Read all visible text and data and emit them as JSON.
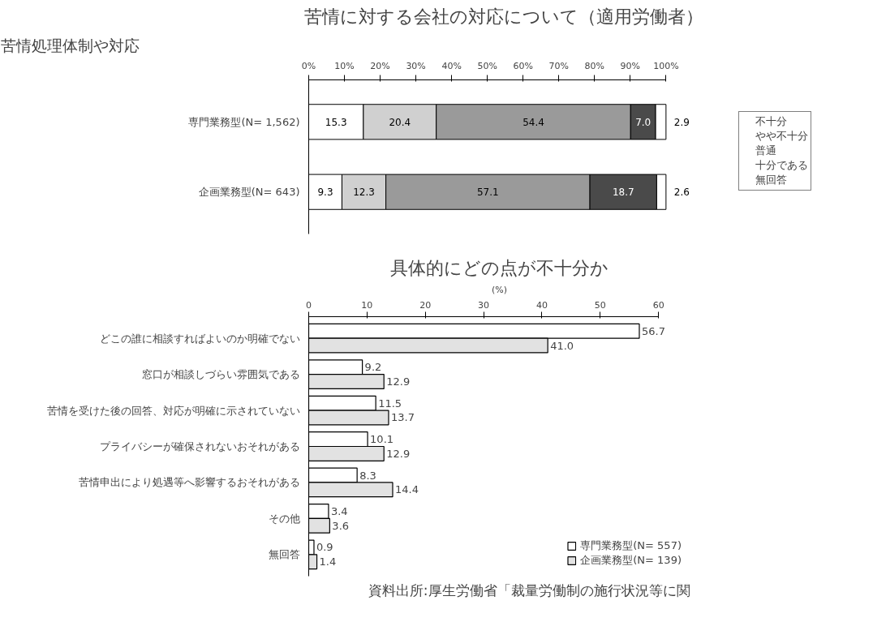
{
  "chart_data": [
    {
      "type": "bar",
      "orientation": "horizontal",
      "stacked": true,
      "title": "苦情に対する会社の対応について（適用労働者）",
      "subtitle": "苦情処理体制や対応",
      "categories": [
        "専門業務型(N= 1,562)",
        "企画業務型(N= 643)"
      ],
      "series": [
        {
          "name": "不十分",
          "color": "#ffffff",
          "values": [
            15.3,
            9.3
          ]
        },
        {
          "name": "やや不十分",
          "color": "#d0d0d0",
          "values": [
            20.4,
            12.3
          ]
        },
        {
          "name": "普通",
          "color": "#9a9a9a",
          "values": [
            54.4,
            57.1
          ]
        },
        {
          "name": "十分である",
          "color": "#4a4a4a",
          "values": [
            7.0,
            18.7
          ]
        },
        {
          "name": "無回答",
          "color": "#ffffff",
          "values": [
            2.9,
            2.6
          ]
        }
      ],
      "xlim": [
        0,
        100
      ],
      "xticks": [
        {
          "value": 0,
          "label": "0%"
        },
        {
          "value": 10,
          "label": "10%"
        },
        {
          "value": 20,
          "label": "20%"
        },
        {
          "value": 30,
          "label": "30%"
        },
        {
          "value": 40,
          "label": "40%"
        },
        {
          "value": 50,
          "label": "50%"
        },
        {
          "value": 60,
          "label": "60%"
        },
        {
          "value": 70,
          "label": "70%"
        },
        {
          "value": 80,
          "label": "80%"
        },
        {
          "value": 90,
          "label": "90%"
        },
        {
          "value": 100,
          "label": "100%"
        }
      ],
      "value_labels": [
        [
          "15.3",
          "9.3"
        ],
        [
          "20.4",
          "12.3"
        ],
        [
          "54.4",
          "57.1"
        ],
        [
          "7.0",
          "18.7"
        ],
        [
          "2.9",
          "2.6"
        ]
      ],
      "legend": "right",
      "grid": false
    },
    {
      "type": "bar",
      "orientation": "horizontal",
      "title": "具体的にどの点が不十分か",
      "xlabel": "(%)",
      "categories": [
        "どこの誰に相談すればよいのか明確でない",
        "窓口が相談しづらい雰囲気である",
        "苦情を受けた後の回答、対応が明確に示されていない",
        "プライバシーが確保されないおそれがある",
        "苦情申出により処遇等へ影響するおそれがある",
        "その他",
        "無回答"
      ],
      "series": [
        {
          "name": "専門業務型(N= 557)",
          "color": "#ffffff",
          "values": [
            56.7,
            9.2,
            11.5,
            10.1,
            8.3,
            3.4,
            0.9
          ]
        },
        {
          "name": "企画業務型(N= 139)",
          "color": "#e2e2e2",
          "values": [
            41.0,
            12.9,
            13.7,
            12.9,
            14.4,
            3.6,
            1.4
          ]
        }
      ],
      "value_labels": [
        [
          "56.7",
          "9.2",
          "11.5",
          "10.1",
          "8.3",
          "3.4",
          "0.9"
        ],
        [
          "41.0",
          "12.9",
          "13.7",
          "12.9",
          "14.4",
          "3.6",
          "1.4"
        ]
      ],
      "xlim": [
        0,
        60
      ],
      "xticks": [
        0,
        10,
        20,
        30,
        40,
        50,
        60
      ],
      "annotations": [
        "資料出所:厚生労働省「裁量労働制の施行状況等に関"
      ],
      "legend": "bottom right",
      "grid": false
    }
  ]
}
